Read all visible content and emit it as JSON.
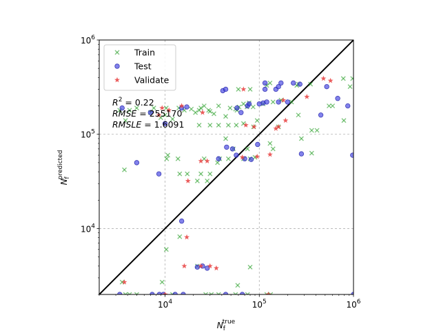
{
  "chart_data": {
    "type": "scatter",
    "xlabel": "N_f^true",
    "ylabel": "N_f^predicted",
    "xscale": "log",
    "yscale": "log",
    "xlim": [
      2000,
      1000000
    ],
    "ylim": [
      2000,
      1000000
    ],
    "grid": true,
    "legend_position": "top-left",
    "x_major_ticks": [
      10000,
      100000,
      1000000
    ],
    "y_major_ticks": [
      10000,
      100000,
      1000000
    ],
    "x_tick_labels": [
      {
        "base": "10",
        "exp": "4"
      },
      {
        "base": "10",
        "exp": "5"
      },
      {
        "base": "10",
        "exp": "6"
      }
    ],
    "y_tick_labels": [
      {
        "base": "10",
        "exp": "4"
      },
      {
        "base": "10",
        "exp": "5"
      },
      {
        "base": "10",
        "exp": "6"
      }
    ],
    "annotations": [
      {
        "math_var": "R",
        "sup": "2",
        "value": " = 0.22"
      },
      {
        "math_var": "RMSE",
        "sup": "",
        "value": " = 255170"
      },
      {
        "math_var": "RMSLE",
        "sup": "",
        "value": " = 1.6091"
      }
    ],
    "series": [
      {
        "name": "Train",
        "marker": "x",
        "color": "#2ca02c",
        "points": [
          [
            3300,
            180000
          ],
          [
            3800,
            140000
          ],
          [
            4200,
            180000
          ],
          [
            5000,
            190000
          ],
          [
            7000,
            170000
          ],
          [
            7600,
            190000
          ],
          [
            9000,
            150000
          ],
          [
            10000,
            160000
          ],
          [
            10300,
            190000
          ],
          [
            12000,
            145000
          ],
          [
            14000,
            190000
          ],
          [
            16000,
            180000
          ],
          [
            19000,
            185000
          ],
          [
            21000,
            170000
          ],
          [
            23000,
            180000
          ],
          [
            24000,
            190000
          ],
          [
            26000,
            200000
          ],
          [
            30000,
            175000
          ],
          [
            33000,
            165000
          ],
          [
            37000,
            200000
          ],
          [
            44000,
            155000
          ],
          [
            49000,
            190000
          ],
          [
            56000,
            185000
          ],
          [
            58000,
            180000
          ],
          [
            61000,
            195000
          ],
          [
            68000,
            210000
          ],
          [
            74000,
            195000
          ],
          [
            78000,
            215000
          ],
          [
            86000,
            195000
          ],
          [
            95000,
            140000
          ],
          [
            110000,
            210000
          ],
          [
            120000,
            330000
          ],
          [
            130000,
            350000
          ],
          [
            140000,
            220000
          ],
          [
            170000,
            230000
          ],
          [
            220000,
            220000
          ],
          [
            250000,
            330000
          ],
          [
            350000,
            340000
          ],
          [
            780000,
            390000
          ],
          [
            980000,
            390000
          ],
          [
            600000,
            200000
          ],
          [
            23000,
            125000
          ],
          [
            30000,
            125000
          ],
          [
            37000,
            125000
          ],
          [
            47000,
            125000
          ],
          [
            57000,
            125000
          ],
          [
            68000,
            130000
          ],
          [
            87000,
            120000
          ],
          [
            29000,
            180000
          ],
          [
            60000,
            300000
          ],
          [
            80000,
            300000
          ],
          [
            36000,
            50000
          ],
          [
            38000,
            55000
          ],
          [
            44000,
            90000
          ],
          [
            47000,
            55000
          ],
          [
            53000,
            70000
          ],
          [
            68000,
            55000
          ],
          [
            75000,
            70000
          ],
          [
            80000,
            55000
          ],
          [
            90000,
            57000
          ],
          [
            130000,
            80000
          ],
          [
            140000,
            70000
          ],
          [
            160000,
            120000
          ],
          [
            260000,
            160000
          ],
          [
            280000,
            90000
          ],
          [
            360000,
            110000
          ],
          [
            410000,
            110000
          ],
          [
            550000,
            200000
          ],
          [
            10400,
            55000
          ],
          [
            10700,
            60000
          ],
          [
            13700,
            55000
          ],
          [
            14300,
            38000
          ],
          [
            17200,
            38000
          ],
          [
            22000,
            32000
          ],
          [
            24000,
            38000
          ],
          [
            26000,
            55000
          ],
          [
            28000,
            32000
          ],
          [
            30000,
            38000
          ],
          [
            3700,
            42000
          ],
          [
            3500,
            2700
          ],
          [
            3800,
            2000
          ],
          [
            4200,
            2000
          ],
          [
            5000,
            2000
          ],
          [
            9300,
            2700
          ],
          [
            10300,
            6000
          ],
          [
            12000,
            2000
          ],
          [
            14300,
            8200
          ],
          [
            22000,
            4000
          ],
          [
            27000,
            2000
          ],
          [
            31000,
            2000
          ],
          [
            37000,
            2000
          ],
          [
            56000,
            2000
          ],
          [
            59000,
            2500
          ],
          [
            75000,
            2000
          ],
          [
            80000,
            3900
          ],
          [
            120000,
            2000
          ],
          [
            132000,
            2000
          ],
          [
            360000,
            63000
          ],
          [
            790000,
            140000
          ],
          [
            920000,
            320000
          ],
          [
            260000,
            340000
          ]
        ]
      },
      {
        "name": "Test",
        "marker": "o",
        "color": "#3f3fe0",
        "points": [
          [
            3500,
            190000
          ],
          [
            7000,
            170000
          ],
          [
            8600,
            38000
          ],
          [
            10000,
            130000
          ],
          [
            15000,
            190000
          ],
          [
            17000,
            195000
          ],
          [
            22000,
            3900
          ],
          [
            25000,
            4000
          ],
          [
            28000,
            3800
          ],
          [
            37000,
            55000
          ],
          [
            41000,
            290000
          ],
          [
            44000,
            300000
          ],
          [
            45000,
            73000
          ],
          [
            52000,
            70000
          ],
          [
            58000,
            190000
          ],
          [
            64000,
            170000
          ],
          [
            70000,
            55000
          ],
          [
            75000,
            200000
          ],
          [
            78000,
            210000
          ],
          [
            82000,
            54000
          ],
          [
            96000,
            78000
          ],
          [
            100000,
            210000
          ],
          [
            110000,
            215000
          ],
          [
            115000,
            350000
          ],
          [
            120000,
            220000
          ],
          [
            150000,
            300000
          ],
          [
            160000,
            220000
          ],
          [
            170000,
            350000
          ],
          [
            280000,
            62000
          ],
          [
            450000,
            160000
          ],
          [
            520000,
            320000
          ],
          [
            680000,
            240000
          ],
          [
            870000,
            200000
          ],
          [
            980000,
            60000
          ],
          [
            15000,
            12000
          ],
          [
            5000,
            50000
          ],
          [
            57000,
            60000
          ],
          [
            115000,
            300000
          ],
          [
            230000,
            350000
          ],
          [
            160000,
            320000
          ],
          [
            1000000,
            2000
          ],
          [
            3300,
            2000
          ],
          [
            7300,
            2000
          ],
          [
            8700,
            2000
          ],
          [
            9600,
            2000
          ],
          [
            12800,
            2000
          ],
          [
            15600,
            2000
          ],
          [
            44000,
            2000
          ],
          [
            66000,
            2000
          ],
          [
            200000,
            220000
          ],
          [
            270000,
            340000
          ]
        ]
      },
      {
        "name": "Validate",
        "marker": "*",
        "color": "#e84040",
        "points": [
          [
            3700,
            2700
          ],
          [
            8600,
            160000
          ],
          [
            9300,
            190000
          ],
          [
            11000,
            180000
          ],
          [
            15000,
            200000
          ],
          [
            16000,
            4000
          ],
          [
            17000,
            8100
          ],
          [
            17500,
            32000
          ],
          [
            24000,
            52000
          ],
          [
            25000,
            170000
          ],
          [
            28000,
            52000
          ],
          [
            30000,
            4000
          ],
          [
            35000,
            3800
          ],
          [
            66000,
            57000
          ],
          [
            68000,
            300000
          ],
          [
            72000,
            125000
          ],
          [
            88000,
            120000
          ],
          [
            130000,
            61000
          ],
          [
            150000,
            115000
          ],
          [
            180000,
            230000
          ],
          [
            190000,
            140000
          ],
          [
            320000,
            250000
          ],
          [
            480000,
            390000
          ],
          [
            570000,
            370000
          ],
          [
            125000,
            2000
          ],
          [
            24000,
            4000
          ],
          [
            95000,
            58000
          ],
          [
            10000,
            2000
          ],
          [
            160000,
            120000
          ]
        ]
      }
    ],
    "reference_line": {
      "type": "identity",
      "color": "#000000"
    }
  }
}
